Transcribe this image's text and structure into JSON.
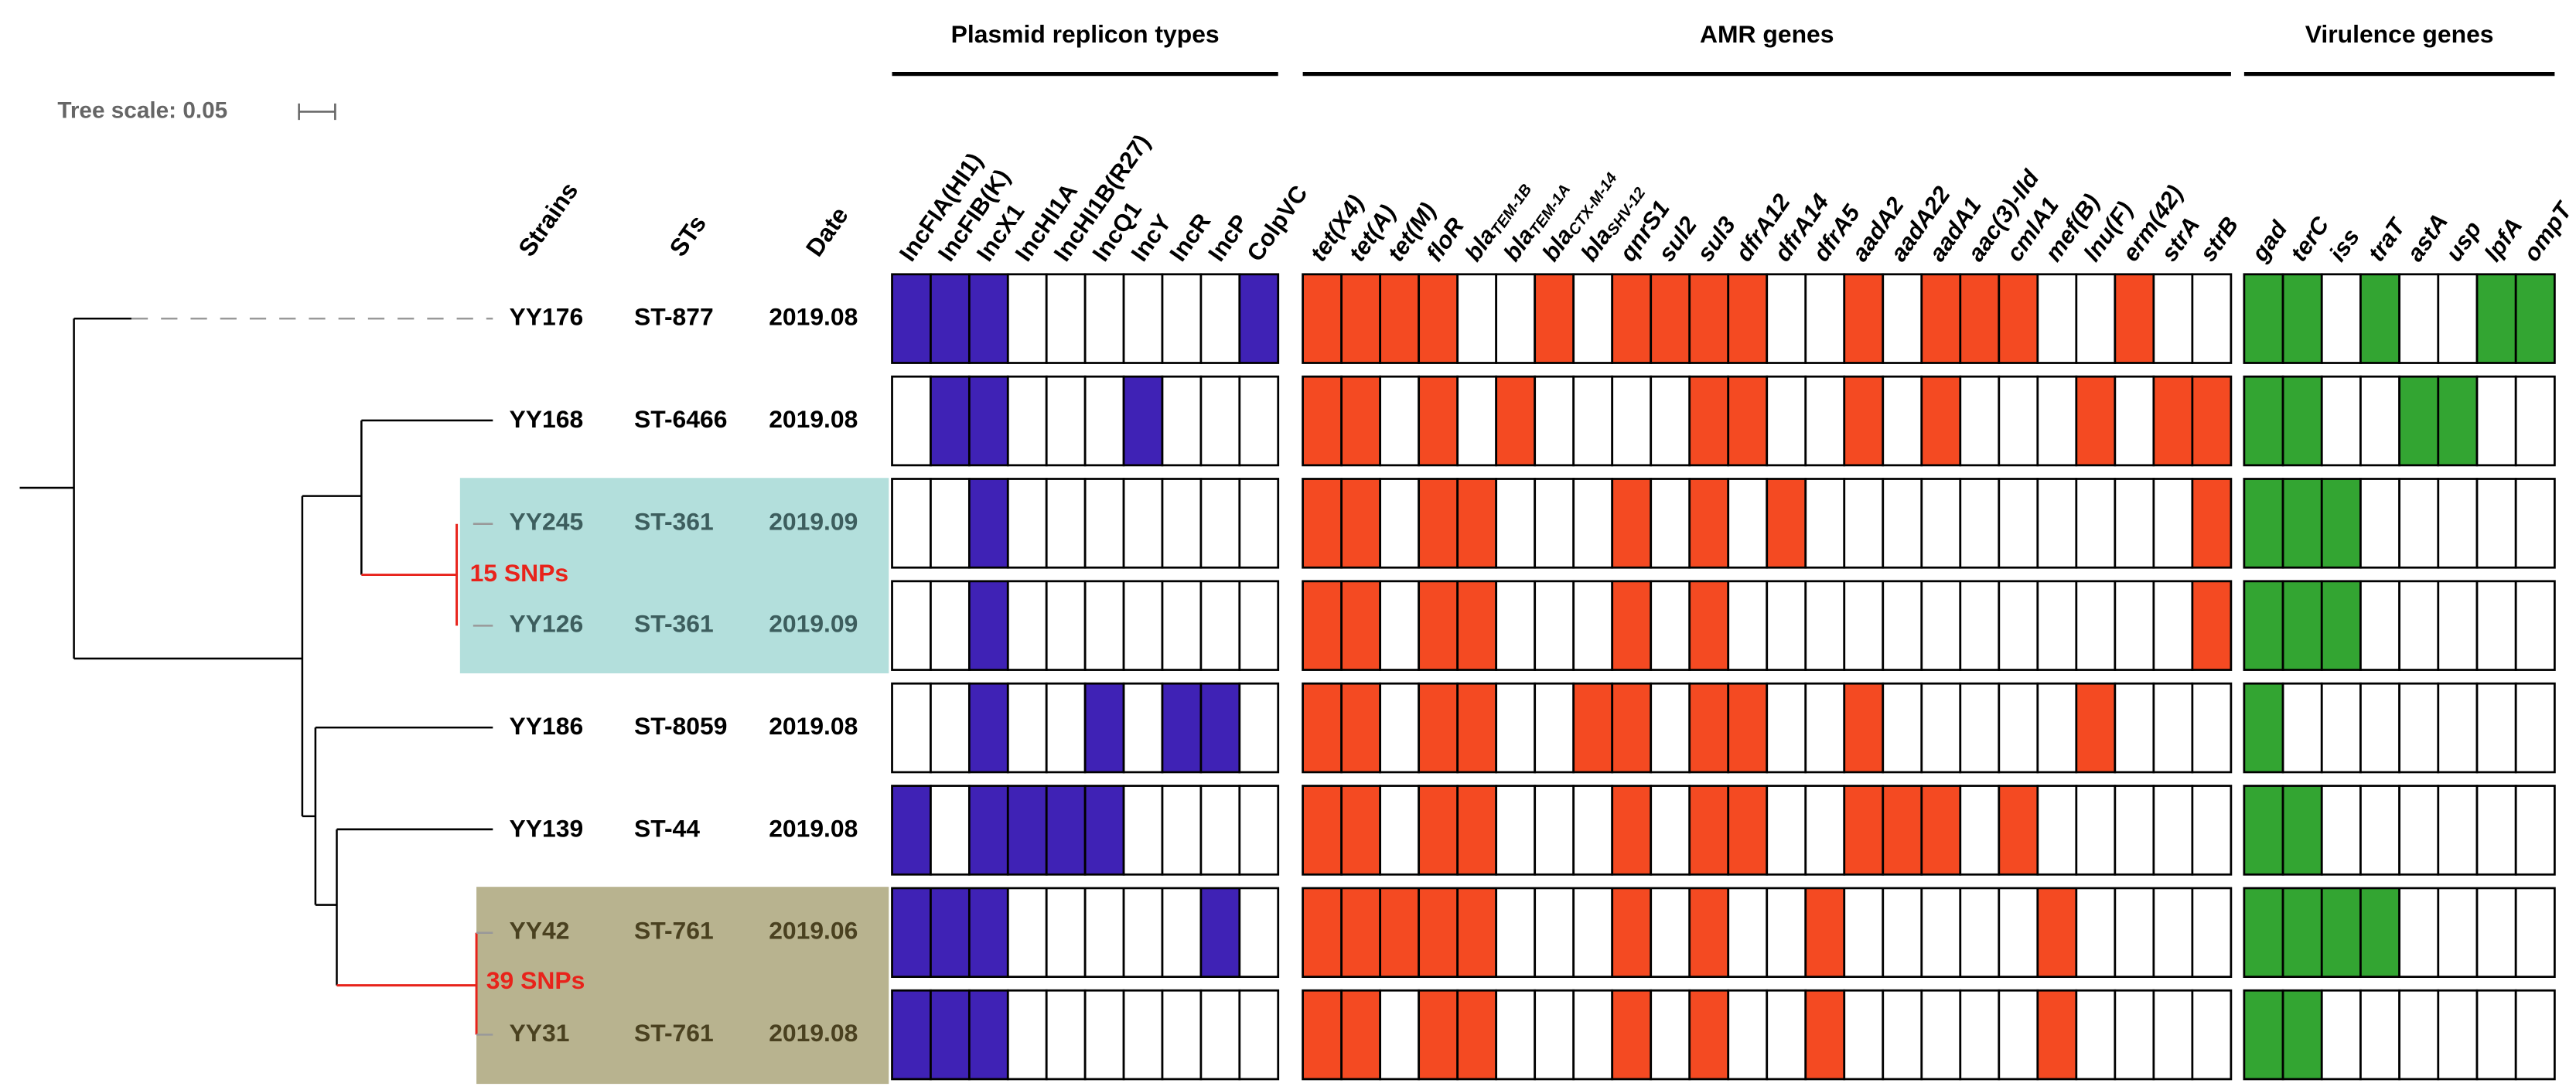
{
  "tree_scale": {
    "label": "Tree scale: 0.05"
  },
  "column_headers": [
    "Strains",
    "STs",
    "Date"
  ],
  "clades": [
    {
      "label": "15 SNPs"
    },
    {
      "label": "39 SNPs"
    }
  ],
  "groups": [
    {
      "title": "Plasmid replicon types",
      "color": "#3f22b5",
      "italic": false,
      "genes": [
        "IncFIA(HI1)",
        "IncFIB(K)",
        "IncX1",
        "IncHI1A",
        "IncHI1B(R27)",
        "IncQ1",
        "IncY",
        "IncR",
        "IncP",
        "ColpVC"
      ]
    },
    {
      "title": "AMR genes",
      "color": "#f44a22",
      "italic": true,
      "genes": [
        "tet(X4)",
        "tet(A)",
        "tet(M)",
        "floR",
        {
          "name": "bla",
          "sub": "TEM-1B"
        },
        {
          "name": "bla",
          "sub": "TEM-1A"
        },
        {
          "name": "bla",
          "sub": "CTX-M-14"
        },
        {
          "name": "bla",
          "sub": "SHV-12"
        },
        "qnrS1",
        "sul2",
        "sul3",
        "dfrA12",
        "dfrA14",
        "dfrA5",
        "aadA2",
        "aadA22",
        "aadA1",
        "aac(3)-IId",
        "cmlA1",
        "mef(B)",
        "lnu(F)",
        "erm(42)",
        "strA",
        "strB"
      ]
    },
    {
      "title": "Virulence genes",
      "color": "#33a532",
      "italic": true,
      "genes": [
        "gad",
        "terC",
        "iss",
        "traT",
        "astA",
        "usp",
        "lpfA",
        "ompT"
      ]
    }
  ],
  "rows": [
    {
      "strain": "YY176",
      "st": "ST-877",
      "date": "2019.08",
      "presence": [
        [
          1,
          1,
          1,
          0,
          0,
          0,
          0,
          0,
          0,
          1
        ],
        [
          1,
          1,
          1,
          1,
          0,
          0,
          1,
          0,
          1,
          1,
          1,
          1,
          0,
          0,
          1,
          0,
          1,
          1,
          1,
          0,
          0,
          1,
          0,
          0
        ],
        [
          1,
          1,
          0,
          1,
          0,
          0,
          1,
          1
        ]
      ]
    },
    {
      "strain": "YY168",
      "st": "ST-6466",
      "date": "2019.08",
      "presence": [
        [
          0,
          1,
          1,
          0,
          0,
          0,
          1,
          0,
          0,
          0
        ],
        [
          1,
          1,
          0,
          1,
          0,
          1,
          0,
          0,
          0,
          0,
          1,
          1,
          0,
          0,
          1,
          0,
          1,
          0,
          0,
          0,
          1,
          0,
          1,
          1
        ],
        [
          1,
          1,
          0,
          0,
          1,
          1,
          0,
          0
        ]
      ]
    },
    {
      "strain": "YY245",
      "st": "ST-361",
      "date": "2019.09",
      "presence": [
        [
          0,
          0,
          1,
          0,
          0,
          0,
          0,
          0,
          0,
          0
        ],
        [
          1,
          1,
          0,
          1,
          1,
          0,
          0,
          0,
          1,
          0,
          1,
          0,
          1,
          0,
          0,
          0,
          0,
          0,
          0,
          0,
          0,
          0,
          0,
          1
        ],
        [
          1,
          1,
          1,
          0,
          0,
          0,
          0,
          0
        ]
      ]
    },
    {
      "strain": "YY126",
      "st": "ST-361",
      "date": "2019.09",
      "presence": [
        [
          0,
          0,
          1,
          0,
          0,
          0,
          0,
          0,
          0,
          0
        ],
        [
          1,
          1,
          0,
          1,
          1,
          0,
          0,
          0,
          1,
          0,
          1,
          0,
          0,
          0,
          0,
          0,
          0,
          0,
          0,
          0,
          0,
          0,
          0,
          1
        ],
        [
          1,
          1,
          1,
          0,
          0,
          0,
          0,
          0
        ]
      ]
    },
    {
      "strain": "YY186",
      "st": "ST-8059",
      "date": "2019.08",
      "presence": [
        [
          0,
          0,
          1,
          0,
          0,
          1,
          0,
          1,
          1,
          0
        ],
        [
          1,
          1,
          0,
          1,
          1,
          0,
          0,
          1,
          1,
          0,
          1,
          1,
          0,
          0,
          1,
          0,
          0,
          0,
          0,
          0,
          1,
          0,
          0,
          0
        ],
        [
          1,
          0,
          0,
          0,
          0,
          0,
          0,
          0
        ]
      ]
    },
    {
      "strain": "YY139",
      "st": "ST-44",
      "date": "2019.08",
      "presence": [
        [
          1,
          0,
          1,
          1,
          1,
          1,
          0,
          0,
          0,
          0
        ],
        [
          1,
          1,
          0,
          1,
          1,
          0,
          0,
          0,
          1,
          0,
          1,
          1,
          0,
          0,
          1,
          1,
          1,
          0,
          1,
          0,
          0,
          0,
          0,
          0
        ],
        [
          1,
          1,
          0,
          0,
          0,
          0,
          0,
          0
        ]
      ]
    },
    {
      "strain": "YY42",
      "st": "ST-761",
      "date": "2019.06",
      "presence": [
        [
          1,
          1,
          1,
          0,
          0,
          0,
          0,
          0,
          1,
          0
        ],
        [
          1,
          1,
          1,
          1,
          1,
          0,
          0,
          0,
          1,
          0,
          1,
          0,
          0,
          1,
          0,
          0,
          0,
          0,
          0,
          1,
          0,
          0,
          0,
          0
        ],
        [
          1,
          1,
          1,
          1,
          0,
          0,
          0,
          0
        ]
      ]
    },
    {
      "strain": "YY31",
      "st": "ST-761",
      "date": "2019.08",
      "presence": [
        [
          1,
          1,
          1,
          0,
          0,
          0,
          0,
          0,
          0,
          0
        ],
        [
          1,
          1,
          0,
          1,
          1,
          0,
          0,
          0,
          1,
          0,
          1,
          0,
          0,
          1,
          0,
          0,
          0,
          0,
          0,
          1,
          0,
          0,
          0,
          0
        ],
        [
          1,
          1,
          0,
          0,
          0,
          0,
          0,
          0
        ]
      ]
    }
  ]
}
